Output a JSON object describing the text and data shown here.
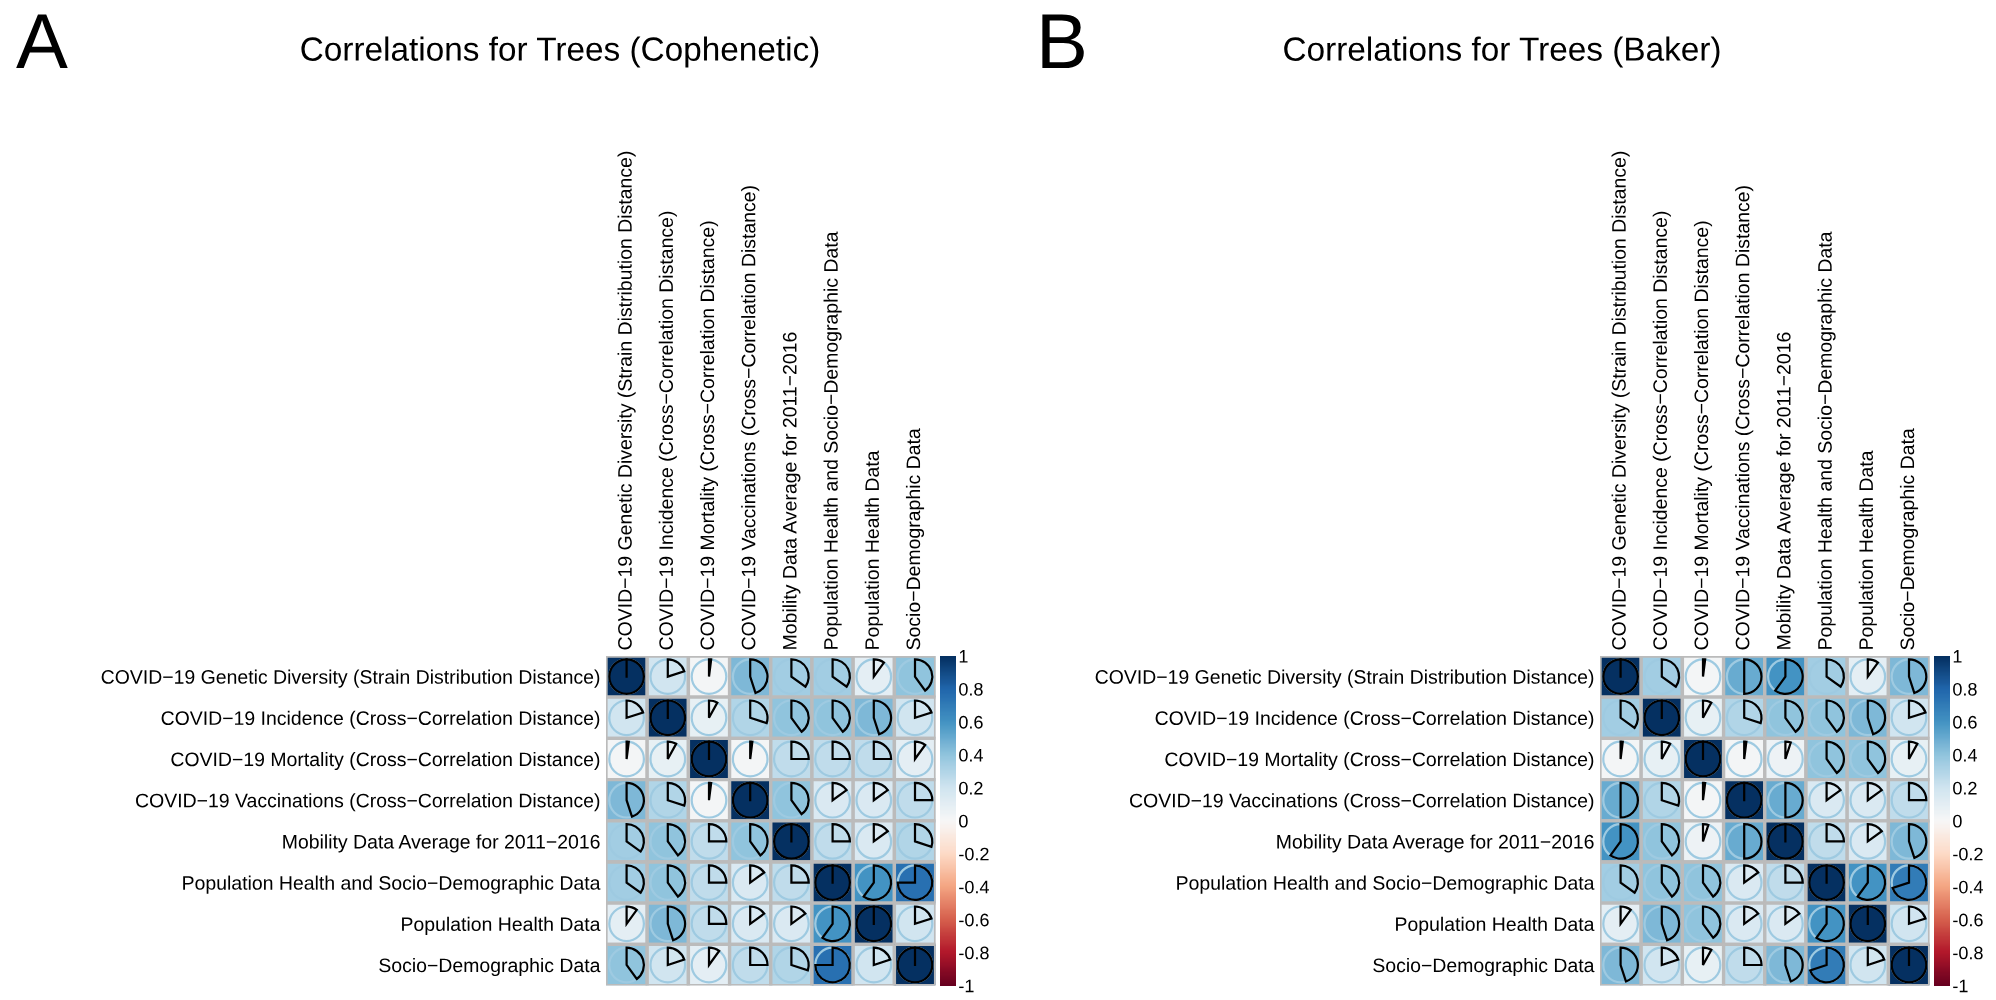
{
  "chart_data": [
    {
      "type": "heatmap",
      "title": "Correlations for Trees (Cophenetic)",
      "annotations": [
        "A"
      ],
      "categories": [
        "COVID−19 Genetic Diversity (Strain Distribution Distance)",
        "COVID−19 Incidence (Cross−Correlation Distance)",
        "COVID−19 Mortality (Cross−Correlation Distance)",
        "COVID−19 Vaccinations (Cross−Correlation Distance)",
        "Mobility Data Average for 2011−2016",
        "Population Health and Socio−Demographic Data",
        "Population Health Data",
        "Socio−Demographic Data"
      ],
      "y_categories": [
        "COVID−19 Genetic Diversity (Strain Distribution Distance)",
        "COVID−19 Incidence (Cross−Correlation Distance)",
        "COVID−19 Mortality (Cross−Correlation Distance)",
        "COVID−19 Vaccinations (Cross−Correlation Distance)",
        "Mobility Data Average for 2011−2016",
        "Population Health and Socio−Demographic Data",
        "Population Health Data",
        "Socio−Demographic Data"
      ],
      "cells": [
        [
          1,
          0.2,
          0.02,
          0.45,
          0.35,
          0.35,
          0.1,
          0.4
        ],
        [
          0.2,
          1,
          0.08,
          0.3,
          0.4,
          0.4,
          0.45,
          0.2
        ],
        [
          0.02,
          0.08,
          1,
          0.02,
          0.25,
          0.25,
          0.25,
          0.1
        ],
        [
          0.45,
          0.3,
          0.02,
          1,
          0.4,
          0.15,
          0.15,
          0.25
        ],
        [
          0.35,
          0.4,
          0.25,
          0.4,
          1,
          0.25,
          0.15,
          0.3
        ],
        [
          0.35,
          0.4,
          0.25,
          0.15,
          0.25,
          1,
          0.6,
          0.75
        ],
        [
          0.1,
          0.45,
          0.25,
          0.15,
          0.15,
          0.6,
          1,
          0.2
        ],
        [
          0.4,
          0.2,
          0.1,
          0.25,
          0.3,
          0.75,
          0.2,
          1
        ]
      ],
      "clim": [
        -1,
        1
      ],
      "cticks": [
        -1,
        -0.8,
        -0.6,
        -0.4,
        -0.2,
        0,
        0.2,
        0.4,
        0.6,
        0.8,
        1
      ]
    },
    {
      "type": "heatmap",
      "title": "Correlations for Trees (Baker)",
      "annotations": [
        "B"
      ],
      "categories": [
        "COVID−19 Genetic Diversity (Strain Distribution Distance)",
        "COVID−19 Incidence (Cross−Correlation Distance)",
        "COVID−19 Mortality (Cross−Correlation Distance)",
        "COVID−19 Vaccinations (Cross−Correlation Distance)",
        "Mobility Data Average for 2011−2016",
        "Population Health and Socio−Demographic Data",
        "Population Health Data",
        "Socio−Demographic Data"
      ],
      "y_categories": [
        "COVID−19 Genetic Diversity (Strain Distribution Distance)",
        "COVID−19 Incidence (Cross−Correlation Distance)",
        "COVID−19 Mortality (Cross−Correlation Distance)",
        "COVID−19 Vaccinations (Cross−Correlation Distance)",
        "Mobility Data Average for 2011−2016",
        "Population Health and Socio−Demographic Data",
        "Population Health Data",
        "Socio−Demographic Data"
      ],
      "cells": [
        [
          1,
          0.35,
          0.02,
          0.5,
          0.6,
          0.35,
          0.1,
          0.45
        ],
        [
          0.35,
          1,
          0.08,
          0.3,
          0.4,
          0.4,
          0.45,
          0.2
        ],
        [
          0.02,
          0.08,
          1,
          0.02,
          0.05,
          0.4,
          0.4,
          0.08
        ],
        [
          0.5,
          0.3,
          0.02,
          1,
          0.5,
          0.15,
          0.15,
          0.25
        ],
        [
          0.6,
          0.4,
          0.05,
          0.5,
          1,
          0.25,
          0.15,
          0.45
        ],
        [
          0.35,
          0.4,
          0.4,
          0.15,
          0.25,
          1,
          0.6,
          0.7
        ],
        [
          0.1,
          0.45,
          0.4,
          0.15,
          0.15,
          0.6,
          1,
          0.2
        ],
        [
          0.45,
          0.2,
          0.08,
          0.25,
          0.45,
          0.7,
          0.2,
          1
        ]
      ],
      "clim": [
        -1,
        1
      ],
      "cticks": [
        -1,
        -0.8,
        -0.6,
        -0.4,
        -0.2,
        0,
        0.2,
        0.4,
        0.6,
        0.8,
        1
      ]
    }
  ]
}
